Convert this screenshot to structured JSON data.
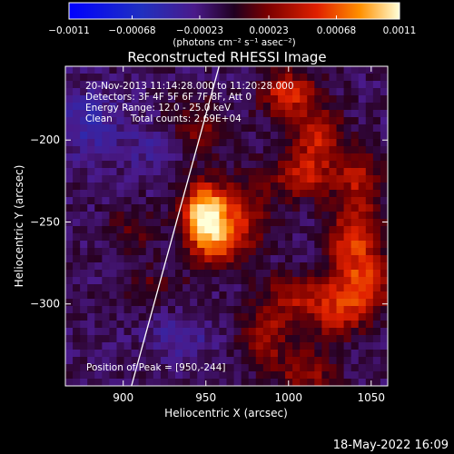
{
  "chart_data": {
    "type": "heatmap",
    "title": "Reconstructed RHESSI Image",
    "xlabel": "Heliocentric X (arcsec)",
    "ylabel": "Heliocentric Y (arcsec)",
    "xlim": [
      865,
      1060
    ],
    "ylim": [
      -350,
      -155
    ],
    "xticks": [
      900,
      950,
      1000,
      1050
    ],
    "yticks": [
      -200,
      -250,
      -300
    ],
    "xtick_labels": [
      "900",
      "950",
      "1000",
      "1050"
    ],
    "ytick_labels": [
      "−200",
      "−250",
      "−300"
    ],
    "colorbar": {
      "range": [
        -0.0011,
        0.0011
      ],
      "ticks": [
        -0.0011,
        -0.00068,
        -0.00023,
        0.00023,
        0.00068,
        0.0011
      ],
      "tick_labels": [
        "−0.0011",
        "−0.00068",
        "−0.00023",
        "0.00023",
        "0.00068",
        "0.0011"
      ],
      "unit_label": "(photons cm⁻² s⁻¹ asec⁻²)",
      "colormap": "rhessi-bipolar"
    },
    "annotations": [
      "20-Nov-2013 11:14:28.000 to 11:20:28.000",
      "Detectors: 3F 4F 5F 6F 7F 8F, Att 0",
      "Energy Range: 12.0 - 25.0 keV",
      "Clean      Total counts: 2.69E+04"
    ],
    "peak_label": "Position of Peak = [950,-244]",
    "peak": {
      "x": 950,
      "y": -244
    },
    "limb_line": {
      "points": [
        [
          905,
          -350
        ],
        [
          958,
          -155
        ]
      ]
    },
    "features": [
      {
        "x": 949,
        "y": -244,
        "sx": 9,
        "sy": 12,
        "amp": 1.0
      },
      {
        "x": 956,
        "y": -262,
        "sx": 12,
        "sy": 12,
        "amp": 0.55
      },
      {
        "x": 972,
        "y": -245,
        "sx": 12,
        "sy": 16,
        "amp": 0.38
      },
      {
        "x": 1000,
        "y": -172,
        "sx": 12,
        "sy": 10,
        "amp": 0.55
      },
      {
        "x": 1018,
        "y": -198,
        "sx": 10,
        "sy": 12,
        "amp": 0.5
      },
      {
        "x": 1008,
        "y": -222,
        "sx": 13,
        "sy": 10,
        "amp": 0.45
      },
      {
        "x": 1042,
        "y": -225,
        "sx": 10,
        "sy": 14,
        "amp": 0.42
      },
      {
        "x": 1040,
        "y": -262,
        "sx": 12,
        "sy": 14,
        "amp": 0.55
      },
      {
        "x": 1045,
        "y": -290,
        "sx": 12,
        "sy": 12,
        "amp": 0.52
      },
      {
        "x": 1028,
        "y": -305,
        "sx": 12,
        "sy": 12,
        "amp": 0.45
      },
      {
        "x": 1002,
        "y": -296,
        "sx": 12,
        "sy": 10,
        "amp": 0.4
      },
      {
        "x": 985,
        "y": -320,
        "sx": 10,
        "sy": 12,
        "amp": 0.42
      },
      {
        "x": 1010,
        "y": -342,
        "sx": 12,
        "sy": 10,
        "amp": 0.38
      },
      {
        "x": 945,
        "y": -192,
        "sx": 12,
        "sy": 12,
        "amp": 0.3
      },
      {
        "x": 905,
        "y": -255,
        "sx": 10,
        "sy": 10,
        "amp": 0.22
      },
      {
        "x": 918,
        "y": -290,
        "sx": 14,
        "sy": 8,
        "amp": 0.2
      },
      {
        "x": 880,
        "y": -190,
        "sx": 14,
        "sy": 14,
        "amp": -0.25
      },
      {
        "x": 920,
        "y": -205,
        "sx": 12,
        "sy": 10,
        "amp": -0.15
      },
      {
        "x": 935,
        "y": -320,
        "sx": 14,
        "sy": 10,
        "amp": -0.18
      }
    ]
  },
  "footer": {
    "timestamp": "18-May-2022 16:09"
  }
}
